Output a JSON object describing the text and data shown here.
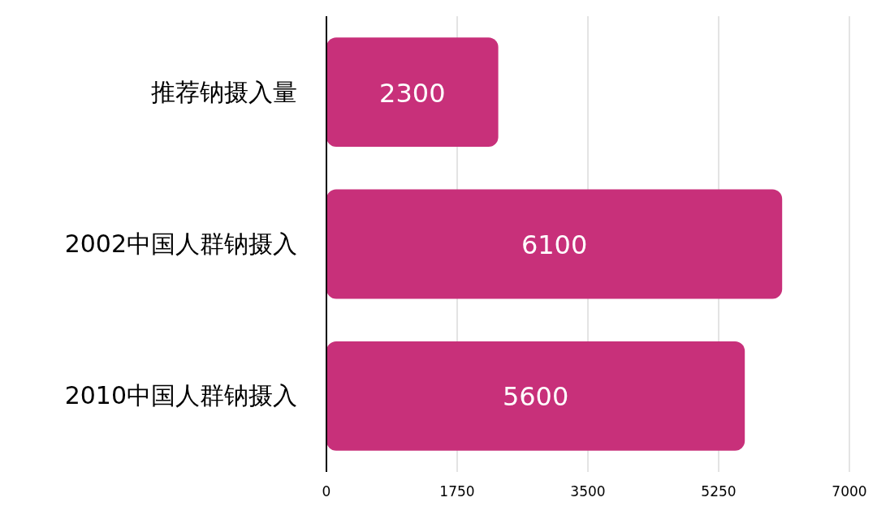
{
  "chart_data": {
    "type": "bar",
    "orientation": "horizontal",
    "categories": [
      "推荐钠摄入量",
      "2002中国人群钠摄入",
      "2010中国人群钠摄入"
    ],
    "values": [
      2300,
      6100,
      5600
    ],
    "color": "#c8307a",
    "xlim": [
      0,
      7000
    ],
    "xticks": [
      0,
      1750,
      3500,
      5250,
      7000
    ],
    "grid": "x",
    "data_labels": true
  }
}
